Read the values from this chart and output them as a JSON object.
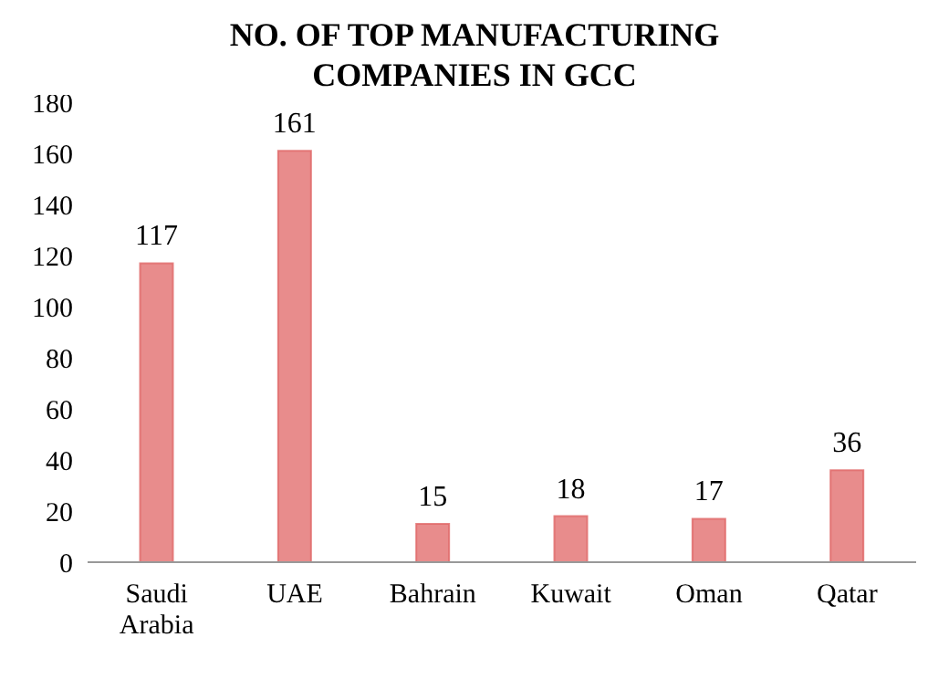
{
  "chart_data": {
    "type": "bar",
    "title": "NO. OF TOP MANUFACTURING COMPANIES IN GCC",
    "categories": [
      "Saudi Arabia",
      "UAE",
      "Bahrain",
      "Kuwait",
      "Oman",
      "Qatar"
    ],
    "values": [
      117,
      161,
      15,
      18,
      17,
      36
    ],
    "color": "#e06666",
    "ylim": [
      0,
      180
    ],
    "yticks": [
      0,
      20,
      40,
      60,
      80,
      100,
      120,
      140,
      160,
      180
    ],
    "data_labels": true,
    "grid": false,
    "legend": false
  }
}
